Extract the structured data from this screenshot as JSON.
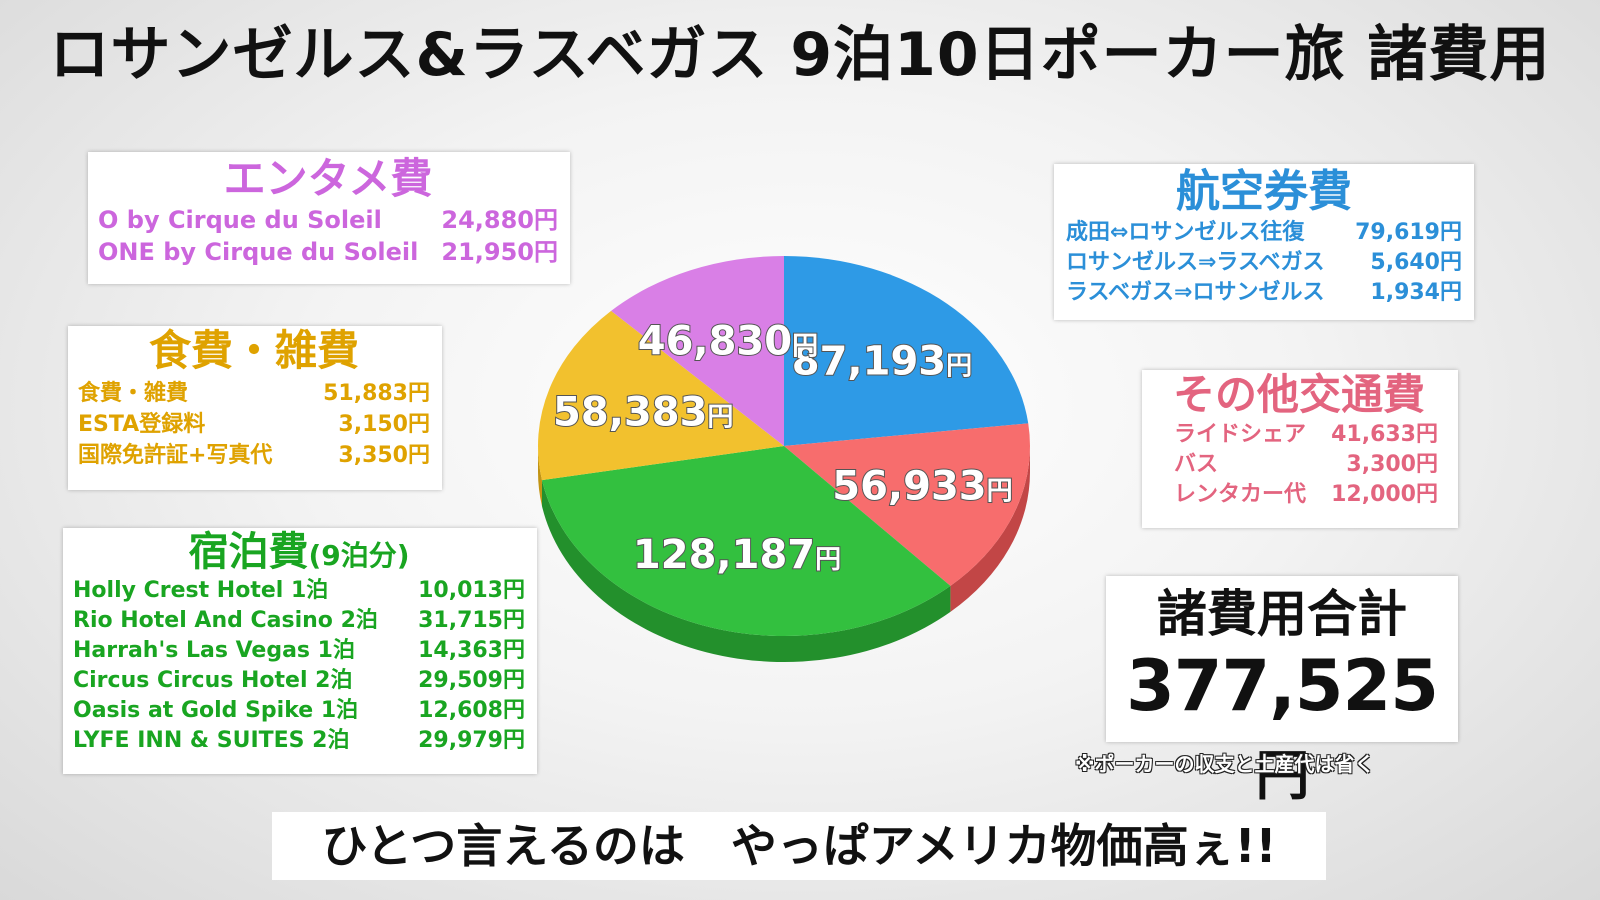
{
  "title": "ロサンゼルス&ラスベガス 9泊10日ポーカー旅 諸費用",
  "entertainment": {
    "heading": "エンタメ費",
    "items": [
      {
        "name": "O by Cirque du Soleil",
        "amount": "24,880円"
      },
      {
        "name": "ONE by Cirque du Soleil",
        "amount": "21,950円"
      }
    ]
  },
  "food": {
    "heading": "食費・雑費",
    "items": [
      {
        "name": "食費・雑費",
        "amount": "51,883円"
      },
      {
        "name": "ESTA登録料",
        "amount": "3,150円"
      },
      {
        "name": "国際免許証+写真代",
        "amount": "3,350円"
      }
    ]
  },
  "hotel": {
    "heading": "宿泊費",
    "heading_sub": "(9泊分)",
    "items": [
      {
        "name": "Holly Crest Hotel 1泊",
        "amount": "10,013円"
      },
      {
        "name": "Rio Hotel And Casino 2泊",
        "amount": "31,715円"
      },
      {
        "name": "Harrah's Las Vegas 1泊",
        "amount": "14,363円"
      },
      {
        "name": "Circus Circus Hotel 2泊",
        "amount": "29,509円"
      },
      {
        "name": "Oasis at Gold Spike 1泊",
        "amount": "12,608円"
      },
      {
        "name": "LYFE INN & SUITES 2泊",
        "amount": "29,979円"
      }
    ]
  },
  "airfare": {
    "heading": "航空券費",
    "items": [
      {
        "name": "成田⇔ロサンゼルス往復",
        "amount": "79,619円"
      },
      {
        "name": "ロサンゼルス⇒ラスベガス",
        "amount": "5,640円"
      },
      {
        "name": "ラスベガス⇒ロサンゼルス",
        "amount": "1,934円"
      }
    ]
  },
  "transport": {
    "heading": "その他交通費",
    "items": [
      {
        "name": "ライドシェア",
        "amount": "41,633円"
      },
      {
        "name": "バス",
        "amount": "3,300円"
      },
      {
        "name": "レンタカー代",
        "amount": "12,000円"
      }
    ]
  },
  "total": {
    "label": "諸費用合計",
    "value": "377,525",
    "unit": "円"
  },
  "footnote": "※ポーカーの収支と土産代は省く",
  "caption": "ひとつ言えるのは　やっぱアメリカ物価高ぇ!!",
  "chart_data": {
    "type": "pie",
    "unit": "円",
    "slices": [
      {
        "label": "87,193",
        "value": 87193,
        "color": "#2e9ae6",
        "side": "#1f6fb0"
      },
      {
        "label": "56,933",
        "value": 56933,
        "color": "#f76d6d",
        "side": "#c24646"
      },
      {
        "label": "128,187",
        "value": 128187,
        "color": "#33c03f",
        "side": "#23902c"
      },
      {
        "label": "58,383",
        "value": 58383,
        "color": "#f2c12e",
        "side": "#c29413"
      },
      {
        "label": "46,830",
        "value": 46830,
        "color": "#d97fe6",
        "side": "#a957b6"
      }
    ]
  }
}
